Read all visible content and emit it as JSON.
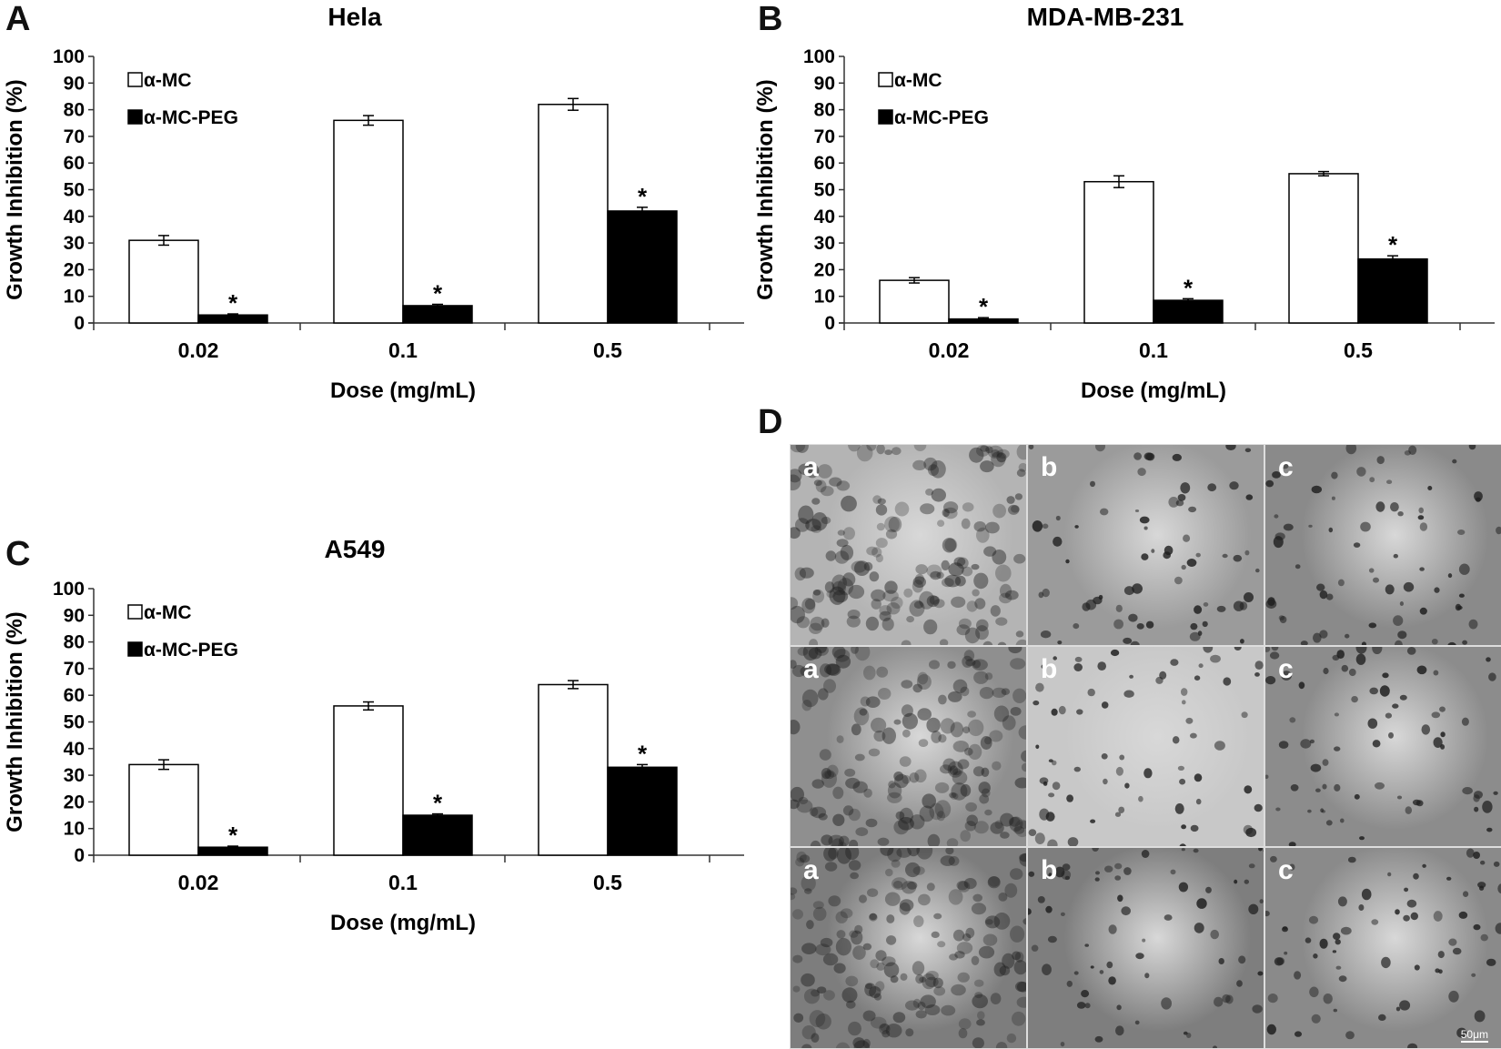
{
  "panels": {
    "A": "A",
    "B": "B",
    "C": "C",
    "D": "D"
  },
  "chart_data": [
    {
      "type": "bar",
      "panel": "A",
      "title": "Hela",
      "xlabel": "Dose (mg/mL)",
      "ylabel": "Growth Inhibition (%)",
      "categories": [
        "0.02",
        "0.1",
        "0.5"
      ],
      "ylim": [
        0,
        100
      ],
      "yticks": [
        0,
        10,
        20,
        30,
        40,
        50,
        60,
        70,
        80,
        90,
        100
      ],
      "legend_position": "top-left",
      "series": [
        {
          "name": "α-MC",
          "color": "#ffffff",
          "values": [
            31,
            76,
            82
          ],
          "errors": [
            1.8,
            1.8,
            2.2
          ]
        },
        {
          "name": "α-MC-PEG",
          "color": "#000000",
          "values": [
            3,
            6.5,
            42
          ],
          "errors": [
            0.4,
            0.5,
            1.4
          ]
        }
      ],
      "significance": [
        "*",
        "*",
        "*"
      ]
    },
    {
      "type": "bar",
      "panel": "B",
      "title": "MDA-MB-231",
      "xlabel": "Dose (mg/mL)",
      "ylabel": "Growth Inhibition (%)",
      "categories": [
        "0.02",
        "0.1",
        "0.5"
      ],
      "ylim": [
        0,
        100
      ],
      "yticks": [
        0,
        10,
        20,
        30,
        40,
        50,
        60,
        70,
        80,
        90,
        100
      ],
      "legend_position": "top-left",
      "series": [
        {
          "name": "α-MC",
          "color": "#ffffff",
          "values": [
            16,
            53,
            56
          ],
          "errors": [
            1.0,
            2.2,
            0.8
          ]
        },
        {
          "name": "α-MC-PEG",
          "color": "#000000",
          "values": [
            1.5,
            8.5,
            24
          ],
          "errors": [
            0.5,
            0.6,
            1.2
          ]
        }
      ],
      "significance": [
        "*",
        "*",
        "*"
      ]
    },
    {
      "type": "bar",
      "panel": "C",
      "title": "A549",
      "xlabel": "Dose (mg/mL)",
      "ylabel": "Growth Inhibition (%)",
      "categories": [
        "0.02",
        "0.1",
        "0.5"
      ],
      "ylim": [
        0,
        100
      ],
      "yticks": [
        0,
        10,
        20,
        30,
        40,
        50,
        60,
        70,
        80,
        90,
        100
      ],
      "legend_position": "top-left",
      "series": [
        {
          "name": "α-MC",
          "color": "#ffffff",
          "values": [
            34,
            56,
            64
          ],
          "errors": [
            1.8,
            1.5,
            1.5
          ]
        },
        {
          "name": "α-MC-PEG",
          "color": "#000000",
          "values": [
            3,
            15,
            33
          ],
          "errors": [
            0.4,
            0.5,
            1.0
          ]
        }
      ],
      "significance": [
        "*",
        "*",
        "*"
      ]
    }
  ],
  "micrographs": {
    "rows": [
      [
        {
          "label": "a"
        },
        {
          "label": "b"
        },
        {
          "label": "c"
        }
      ],
      [
        {
          "label": "a"
        },
        {
          "label": "b"
        },
        {
          "label": "c"
        }
      ],
      [
        {
          "label": "a"
        },
        {
          "label": "b"
        },
        {
          "label": "c"
        }
      ]
    ],
    "scale_bar": "50μm"
  }
}
